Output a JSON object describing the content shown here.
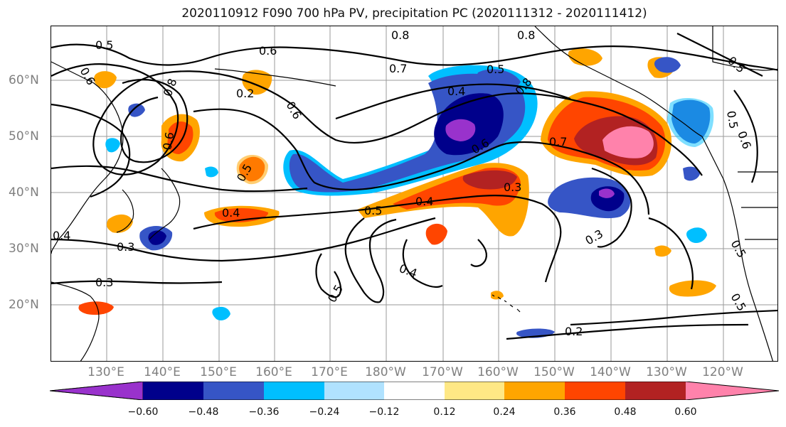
{
  "title": "2020110912 F090 700 hPa PV, precipitation PC (2020111312 - 2020111412)",
  "lat_labels": [
    "60°N",
    "50°N",
    "40°N",
    "30°N",
    "20°N"
  ],
  "lon_labels": [
    "130°E",
    "140°E",
    "150°E",
    "160°E",
    "170°E",
    "180°W",
    "170°W",
    "160°W",
    "150°W",
    "140°W",
    "130°W",
    "120°W"
  ],
  "contour_labels": [
    "0.5",
    "0.6",
    "0.8",
    "0.6",
    "0.8",
    "0.7",
    "0.5",
    "0.4",
    "0.2",
    "0.6",
    "0.8",
    "0.6",
    "0.5",
    "0.6",
    "0.7",
    "0.5",
    "0.6",
    "0.4",
    "0.5",
    "0.4",
    "0.3",
    "0.3",
    "0.3",
    "0.4",
    "0.3",
    "0.5",
    "0.2",
    "0.5",
    "0.8",
    "0.5",
    "0.5",
    "0.4"
  ],
  "colorbar": {
    "ticks": [
      "−0.60",
      "−0.48",
      "−0.36",
      "−0.24",
      "−0.12",
      "0.12",
      "0.24",
      "0.36",
      "0.48",
      "0.60"
    ],
    "colors": [
      "#9932cc",
      "#00008b",
      "#3655c6",
      "#00bfff",
      "#b0e2ff",
      "#ffffff",
      "#ffe885",
      "#ffa500",
      "#ff4500",
      "#b22222",
      "#ff82ab",
      "#ff82ab"
    ]
  },
  "colors": {
    "land_line": "#000000",
    "grid": "#999999",
    "axis_label": "#7f7f7f"
  }
}
